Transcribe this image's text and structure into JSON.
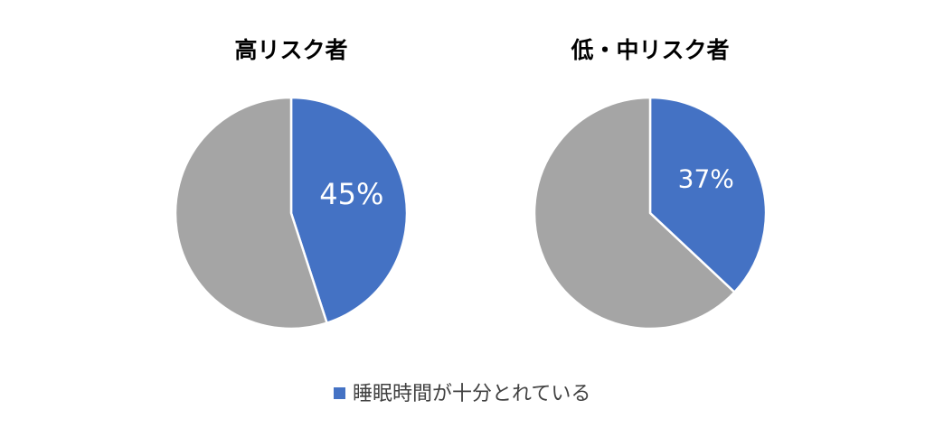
{
  "chart_data": [
    {
      "type": "pie",
      "title": "高リスク者",
      "slices": [
        {
          "name": "睡眠時間が十分とれている",
          "value": 45,
          "label": "45%",
          "color": "#4472C4"
        },
        {
          "name": "",
          "value": 55,
          "label": "",
          "color": "#A5A5A5"
        }
      ]
    },
    {
      "type": "pie",
      "title": "低・中リスク者",
      "slices": [
        {
          "name": "睡眠時間が十分とれている",
          "value": 37,
          "label": "37%",
          "color": "#4472C4"
        },
        {
          "name": "",
          "value": 63,
          "label": "",
          "color": "#A5A5A5"
        }
      ]
    }
  ],
  "legend": {
    "position": "bottom",
    "entries": [
      {
        "label": "睡眠時間が十分とれている",
        "color": "#4472C4"
      }
    ]
  }
}
